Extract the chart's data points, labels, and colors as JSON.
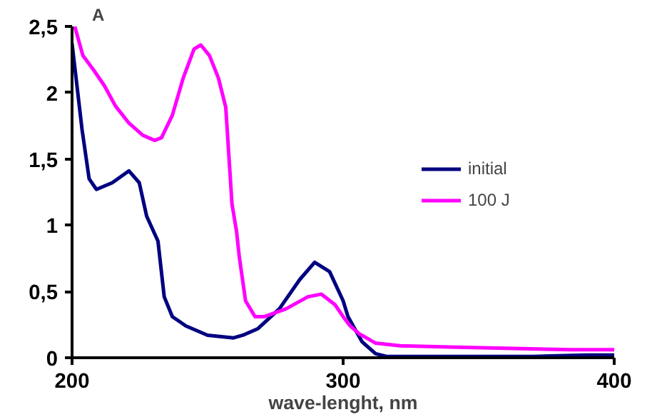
{
  "chart_data": {
    "type": "line",
    "xlabel": "wave-lenght, nm",
    "ylabel": "A",
    "xlim": [
      200,
      400
    ],
    "ylim": [
      0,
      2.5
    ],
    "xticks": [
      200,
      300,
      400
    ],
    "yticks": [
      0,
      {
        "value": 0.5,
        "label": "0,5"
      },
      1,
      {
        "value": 1.5,
        "label": "1,5"
      },
      2,
      {
        "value": 2.5,
        "label": "2,5"
      }
    ],
    "grid": false,
    "legend": "right",
    "line_style": "solid",
    "series": [
      {
        "name": "initial",
        "color": "#000080",
        "x": [
          200,
          203.7,
          206.3,
          209,
          214.8,
          221,
          224.8,
          227.5,
          231.7,
          234,
          237,
          242,
          250,
          259.6,
          263,
          268.6,
          276.5,
          284,
          289.5,
          295,
          300,
          301.8,
          307,
          312,
          316,
          330,
          350,
          370,
          390,
          400
        ],
        "values": [
          2.37,
          1.72,
          1.35,
          1.27,
          1.32,
          1.41,
          1.32,
          1.07,
          0.88,
          0.46,
          0.31,
          0.24,
          0.17,
          0.15,
          0.17,
          0.22,
          0.37,
          0.59,
          0.72,
          0.65,
          0.43,
          0.31,
          0.12,
          0.03,
          0.01,
          0.01,
          0.01,
          0.01,
          0.02,
          0.02
        ]
      },
      {
        "name": "100 J",
        "color": "#ff00ff",
        "x": [
          201,
          204,
          208,
          212,
          216,
          221,
          226,
          230.5,
          233,
          237,
          241,
          245,
          247.5,
          250.7,
          254,
          256.7,
          259,
          260.7,
          261.7,
          264,
          267.5,
          271,
          279,
          287,
          292,
          297,
          300,
          302.6,
          306,
          312,
          321,
          342,
          363,
          384,
          400
        ],
        "values": [
          2.5,
          2.28,
          2.17,
          2.05,
          1.9,
          1.77,
          1.68,
          1.64,
          1.66,
          1.83,
          2.11,
          2.33,
          2.36,
          2.28,
          2.11,
          1.89,
          1.16,
          0.95,
          0.76,
          0.43,
          0.31,
          0.31,
          0.37,
          0.46,
          0.48,
          0.4,
          0.31,
          0.24,
          0.18,
          0.11,
          0.09,
          0.08,
          0.07,
          0.06,
          0.06
        ]
      }
    ]
  }
}
